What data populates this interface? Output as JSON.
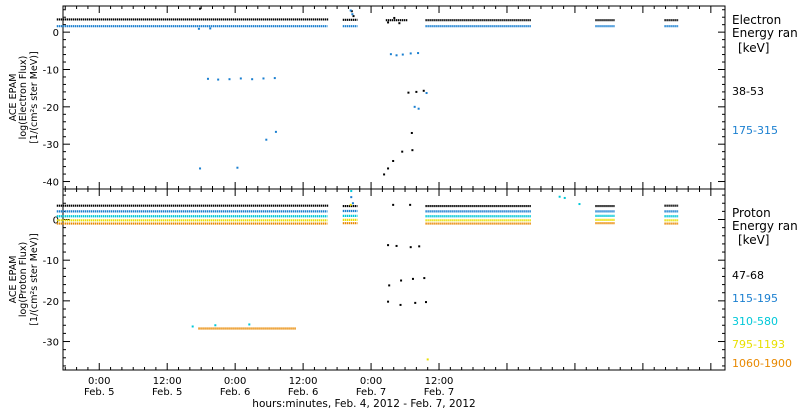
{
  "chart_data": [
    {
      "type": "scatter",
      "id": "electron",
      "ylabel_lines": [
        "ACE EPAM",
        "log(Electron Flux)",
        "[1/(cm²s ster MeV)]"
      ],
      "ylim": [
        -42,
        7
      ],
      "yticks": [
        0,
        -10,
        -20,
        -30,
        -40
      ],
      "legend": {
        "title_lines": [
          "Electron",
          "Energy ran"
        ],
        "unit": "[keV]",
        "position": "right"
      },
      "series": [
        {
          "name": "38-53",
          "color": "#000000",
          "segments": [
            [
              -7.5,
              40.5,
              3.4
            ],
            [
              43.0,
              45.6,
              3.3
            ],
            [
              50.6,
              54.5,
              3.2
            ],
            [
              57.6,
              76.3,
              3.2
            ],
            [
              87.6,
              91.0,
              3.2
            ],
            [
              99.8,
              102.3,
              3.2
            ]
          ],
          "points": [
            [
              17.8,
              6.3
            ],
            [
              44.6,
              5.6
            ],
            [
              44.9,
              4.3
            ],
            [
              52.1,
              3.8
            ],
            [
              50.3,
              -38.1
            ],
            [
              51.0,
              -36.5
            ],
            [
              51.9,
              -34.5
            ],
            [
              53.5,
              -32.0
            ],
            [
              55.3,
              -31.6
            ],
            [
              54.6,
              -16.2
            ],
            [
              56.0,
              -16.0
            ],
            [
              57.3,
              -15.7
            ],
            [
              55.2,
              -27.0
            ],
            [
              51.0,
              2.6
            ],
            [
              53.0,
              2.4
            ]
          ]
        },
        {
          "name": "175-315",
          "color": "#1a7fd0",
          "segments": [
            [
              -7.5,
              40.3,
              1.6
            ],
            [
              43.0,
              45.6,
              1.6
            ],
            [
              57.6,
              76.3,
              1.6
            ],
            [
              87.6,
              91.0,
              1.6
            ],
            [
              99.8,
              102.3,
              1.6
            ]
          ],
          "points": [
            [
              17.6,
              0.9
            ],
            [
              19.6,
              1.0
            ],
            [
              44.4,
              5.8
            ],
            [
              44.7,
              4.8
            ],
            [
              51.5,
              -5.9
            ],
            [
              52.5,
              -6.2
            ],
            [
              53.6,
              -6.0
            ],
            [
              55.0,
              -5.7
            ],
            [
              56.3,
              -5.6
            ],
            [
              55.7,
              -20.0
            ],
            [
              56.4,
              -20.5
            ],
            [
              57.8,
              -16.3
            ],
            [
              19.2,
              -12.5
            ],
            [
              21.0,
              -12.7
            ],
            [
              23.0,
              -12.6
            ],
            [
              25.0,
              -12.4
            ],
            [
              27.0,
              -12.6
            ],
            [
              29.0,
              -12.4
            ],
            [
              31.0,
              -12.3
            ],
            [
              17.8,
              -36.5
            ],
            [
              24.4,
              -36.3
            ],
            [
              31.2,
              -26.7
            ],
            [
              29.5,
              -28.8
            ]
          ]
        }
      ]
    },
    {
      "type": "scatter",
      "id": "proton",
      "ylabel_lines": [
        "ACE EPAM",
        "log(Proton Flux)",
        "[1/(cm²s ster MeV)]"
      ],
      "ylim": [
        -37,
        7.5
      ],
      "yticks": [
        0,
        -10,
        -20,
        -30
      ],
      "xlabel": "hours:minutes, Feb.  4, 2012 - Feb.  7, 2012",
      "xticks": [
        {
          "x": 0,
          "time": "0:00",
          "day": "Feb. 5"
        },
        {
          "x": 12,
          "time": "12:00",
          "day": "Feb. 5"
        },
        {
          "x": 24,
          "time": "0:00",
          "day": "Feb. 6"
        },
        {
          "x": 36,
          "time": "12:00",
          "day": "Feb. 6"
        },
        {
          "x": 48,
          "time": "0:00",
          "day": "Feb. 7"
        },
        {
          "x": 60,
          "time": "12:00",
          "day": "Feb. 7"
        }
      ],
      "legend": {
        "title_lines": [
          "Proton",
          "Energy ran"
        ],
        "unit": "[keV]",
        "position": "right"
      },
      "series": [
        {
          "name": "47-68",
          "color": "#000000",
          "segments": [
            [
              -7.5,
              40.5,
              3.4
            ],
            [
              43.0,
              45.6,
              3.3
            ],
            [
              57.6,
              76.3,
              3.3
            ],
            [
              87.6,
              91.0,
              3.3
            ],
            [
              99.8,
              102.3,
              3.4
            ]
          ],
          "points": [
            [
              51.0,
              -6.3
            ],
            [
              52.5,
              -6.5
            ],
            [
              55.0,
              -6.8
            ],
            [
              56.5,
              -6.6
            ],
            [
              51.2,
              -16.2
            ],
            [
              53.3,
              -15.0
            ],
            [
              55.4,
              -14.6
            ],
            [
              57.4,
              -14.4
            ],
            [
              51.0,
              -20.2
            ],
            [
              53.2,
              -21.0
            ],
            [
              55.8,
              -20.5
            ],
            [
              57.7,
              -20.3
            ],
            [
              51.9,
              3.6
            ],
            [
              54.9,
              3.6
            ]
          ]
        },
        {
          "name": "115-195",
          "color": "#1a7fd0",
          "segments": [
            [
              -7.5,
              40.3,
              2.0
            ],
            [
              43.0,
              45.6,
              2.1
            ],
            [
              57.6,
              76.3,
              2.0
            ],
            [
              87.6,
              91.0,
              2.0
            ],
            [
              99.8,
              102.3,
              2.0
            ]
          ],
          "points": [
            [
              44.5,
              5.5
            ],
            [
              44.8,
              4.0
            ]
          ]
        },
        {
          "name": "310-580",
          "color": "#00c8d8",
          "segments": [
            [
              -7.5,
              40.3,
              0.8
            ],
            [
              43.0,
              45.6,
              0.9
            ],
            [
              57.6,
              76.3,
              0.8
            ],
            [
              87.6,
              91.0,
              0.9
            ],
            [
              99.8,
              102.3,
              0.8
            ]
          ],
          "points": [
            [
              44.5,
              7.0
            ],
            [
              81.3,
              5.6
            ],
            [
              82.2,
              5.3
            ],
            [
              84.8,
              3.8
            ],
            [
              16.5,
              -26.3
            ],
            [
              20.5,
              -26.0
            ],
            [
              26.5,
              -25.8
            ]
          ]
        },
        {
          "name": "795-1193",
          "color": "#e8e000",
          "segments": [
            [
              -7.5,
              40.3,
              -0.2
            ],
            [
              43.0,
              45.6,
              -0.1
            ],
            [
              57.6,
              76.3,
              -0.2
            ],
            [
              87.6,
              91.0,
              -0.1
            ],
            [
              99.8,
              102.3,
              -0.2
            ]
          ],
          "points": [
            [
              44.4,
              3.6
            ],
            [
              58.0,
              -34.4
            ]
          ]
        },
        {
          "name": "1060-1900",
          "color": "#e88800",
          "segments": [
            [
              -7.5,
              40.3,
              -1.0
            ],
            [
              43.0,
              45.6,
              -0.9
            ],
            [
              57.6,
              76.3,
              -1.0
            ],
            [
              87.6,
              91.0,
              -0.9
            ],
            [
              99.8,
              102.3,
              -1.0
            ],
            [
              17.5,
              34.7,
              -26.8
            ]
          ],
          "points": []
        }
      ]
    }
  ],
  "xrange": [
    -6.4,
    110.5
  ]
}
